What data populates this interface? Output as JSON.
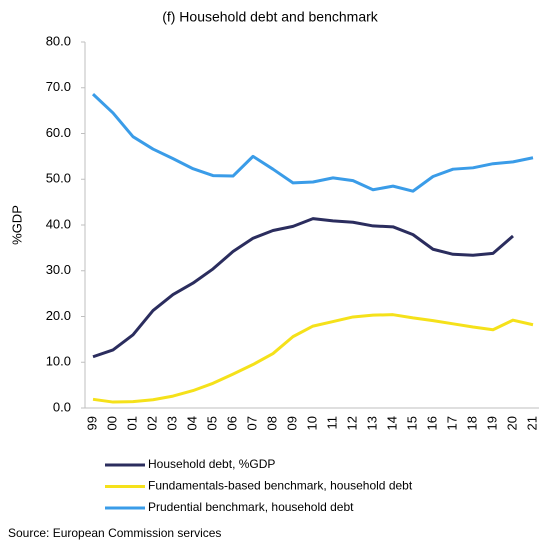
{
  "chart_data": {
    "type": "line",
    "title": "(f) Household debt and benchmark",
    "ylabel": "%GDP",
    "source": "Source: European Commission services",
    "categories": [
      "99",
      "00",
      "01",
      "02",
      "03",
      "04",
      "05",
      "06",
      "07",
      "08",
      "09",
      "10",
      "11",
      "12",
      "13",
      "14",
      "15",
      "16",
      "17",
      "18",
      "19",
      "20",
      "21"
    ],
    "series": [
      {
        "name": "Household debt, %GDP",
        "color": "#2b2d5e",
        "values": [
          11.2,
          12.7,
          16.0,
          21.3,
          24.8,
          27.3,
          30.4,
          34.2,
          37.1,
          38.8,
          39.7,
          41.4,
          40.9,
          40.6,
          39.8,
          39.6,
          37.9,
          34.7,
          33.6,
          33.4,
          33.8,
          37.6,
          null
        ]
      },
      {
        "name": "Fundamentals-based benchmark, household debt",
        "color": "#f5e11a",
        "values": [
          1.9,
          1.3,
          1.4,
          1.8,
          2.6,
          3.8,
          5.4,
          7.4,
          9.5,
          11.9,
          15.6,
          17.9,
          18.9,
          19.9,
          20.3,
          20.4,
          19.7,
          19.1,
          18.4,
          17.7,
          17.1,
          19.2,
          18.2
        ]
      },
      {
        "name": "Prudential benchmark, household debt",
        "color": "#3a9ce8",
        "values": [
          68.6,
          64.5,
          59.3,
          56.6,
          54.5,
          52.3,
          50.8,
          50.7,
          55.0,
          52.2,
          49.2,
          49.4,
          50.3,
          49.7,
          47.7,
          48.5,
          47.4,
          50.6,
          52.2,
          52.5,
          53.4,
          53.8,
          54.7
        ]
      }
    ],
    "ylim": [
      0,
      80
    ],
    "yticks": [
      {
        "value": 0,
        "label": "0.0"
      },
      {
        "value": 10,
        "label": "10.0"
      },
      {
        "value": 20,
        "label": "20.0"
      },
      {
        "value": 30,
        "label": "30.0"
      },
      {
        "value": 40,
        "label": "40.0"
      },
      {
        "value": 50,
        "label": "50.0"
      },
      {
        "value": 60,
        "label": "60.0"
      },
      {
        "value": 70,
        "label": "70.0"
      },
      {
        "value": 80,
        "label": "80.0"
      }
    ],
    "grid": false
  }
}
